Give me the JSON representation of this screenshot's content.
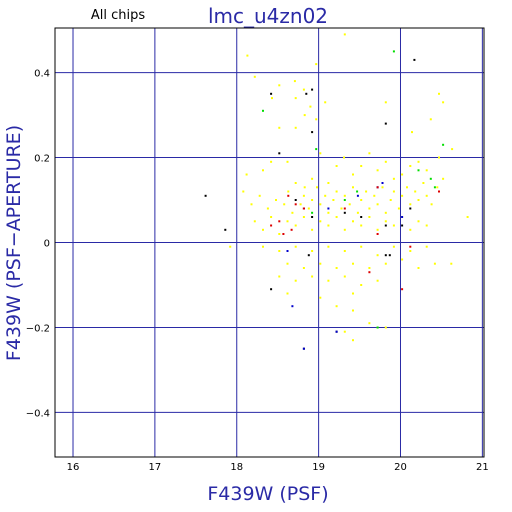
{
  "chart_data": {
    "type": "scatter",
    "title": "lmc_u4zn02",
    "subtitle": "All chips",
    "xlabel": "F439W (PSF)",
    "ylabel": "F439W (PSF−APERTURE)",
    "xlim": [
      15.78,
      21.02
    ],
    "ylim": [
      -0.505,
      0.505
    ],
    "xticks": [
      16,
      17,
      18,
      19,
      20,
      21
    ],
    "yticks": [
      -0.4,
      -0.2,
      0,
      0.2,
      0.4
    ],
    "xtick_labels": [
      "16",
      "17",
      "18",
      "19",
      "20",
      "21"
    ],
    "ytick_labels": [
      "−0.4",
      "−0.2",
      "0",
      "0.2",
      "0.4"
    ],
    "grid": true,
    "colors": {
      "frame": "#000000",
      "grid": "#2a2aa6",
      "title": "#2a2aa6",
      "axis_label": "#2a2aa6",
      "yellow": "#ffff00",
      "black": "#000000",
      "blue": "#0000cc",
      "red": "#dd0000",
      "green": "#00dd00"
    },
    "series": [
      {
        "color": "yellow",
        "points": [
          [
            18.13,
            0.44
          ],
          [
            18.22,
            0.39
          ],
          [
            18.43,
            0.34
          ],
          [
            18.52,
            0.37
          ],
          [
            18.71,
            0.38
          ],
          [
            18.72,
            0.34
          ],
          [
            18.82,
            0.36
          ],
          [
            18.9,
            0.32
          ],
          [
            18.97,
            0.42
          ],
          [
            19.32,
            0.49
          ],
          [
            18.52,
            0.27
          ],
          [
            18.72,
            0.27
          ],
          [
            18.83,
            0.3
          ],
          [
            18.97,
            0.29
          ],
          [
            19.08,
            0.33
          ],
          [
            19.82,
            0.33
          ],
          [
            20.14,
            0.26
          ],
          [
            20.37,
            0.29
          ],
          [
            20.47,
            0.35
          ],
          [
            20.52,
            0.33
          ],
          [
            20.63,
            0.22
          ],
          [
            18.12,
            0.16
          ],
          [
            18.32,
            0.17
          ],
          [
            18.42,
            0.19
          ],
          [
            18.62,
            0.19
          ],
          [
            18.72,
            0.14
          ],
          [
            18.83,
            0.13
          ],
          [
            18.92,
            0.15
          ],
          [
            19.02,
            0.21
          ],
          [
            19.12,
            0.14
          ],
          [
            19.22,
            0.18
          ],
          [
            19.31,
            0.2
          ],
          [
            19.42,
            0.16
          ],
          [
            19.52,
            0.18
          ],
          [
            19.62,
            0.21
          ],
          [
            19.72,
            0.17
          ],
          [
            19.82,
            0.19
          ],
          [
            19.92,
            0.15
          ],
          [
            20.02,
            0.16
          ],
          [
            20.12,
            0.18
          ],
          [
            20.22,
            0.19
          ],
          [
            20.32,
            0.17
          ],
          [
            20.47,
            0.2
          ],
          [
            20.52,
            0.15
          ],
          [
            18.08,
            0.12
          ],
          [
            18.18,
            0.09
          ],
          [
            18.28,
            0.11
          ],
          [
            18.38,
            0.08
          ],
          [
            18.48,
            0.1
          ],
          [
            18.58,
            0.09
          ],
          [
            18.63,
            0.12
          ],
          [
            18.68,
            0.07
          ],
          [
            18.78,
            0.09
          ],
          [
            18.82,
            0.11
          ],
          [
            18.88,
            0.08
          ],
          [
            18.92,
            0.1
          ],
          [
            18.98,
            0.13
          ],
          [
            19.02,
            0.09
          ],
          [
            19.08,
            0.11
          ],
          [
            19.12,
            0.07
          ],
          [
            19.18,
            0.1
          ],
          [
            19.22,
            0.12
          ],
          [
            19.28,
            0.08
          ],
          [
            19.32,
            0.11
          ],
          [
            19.38,
            0.09
          ],
          [
            19.42,
            0.13
          ],
          [
            19.48,
            0.07
          ],
          [
            19.52,
            0.1
          ],
          [
            19.58,
            0.12
          ],
          [
            19.62,
            0.08
          ],
          [
            19.68,
            0.11
          ],
          [
            19.72,
            0.09
          ],
          [
            19.78,
            0.13
          ],
          [
            19.82,
            0.07
          ],
          [
            19.88,
            0.1
          ],
          [
            19.92,
            0.12
          ],
          [
            19.98,
            0.08
          ],
          [
            20.02,
            0.11
          ],
          [
            20.08,
            0.13
          ],
          [
            20.12,
            0.09
          ],
          [
            20.18,
            0.12
          ],
          [
            20.22,
            0.1
          ],
          [
            20.28,
            0.14
          ],
          [
            20.32,
            0.11
          ],
          [
            20.38,
            0.09
          ],
          [
            20.45,
            0.13
          ],
          [
            18.22,
            0.05
          ],
          [
            18.32,
            0.03
          ],
          [
            18.42,
            0.06
          ],
          [
            18.52,
            0.02
          ],
          [
            18.62,
            0.05
          ],
          [
            18.72,
            0.04
          ],
          [
            18.82,
            0.06
          ],
          [
            18.92,
            0.03
          ],
          [
            19.02,
            0.05
          ],
          [
            19.12,
            0.04
          ],
          [
            19.22,
            0.06
          ],
          [
            19.32,
            0.03
          ],
          [
            19.42,
            0.05
          ],
          [
            19.52,
            0.04
          ],
          [
            19.62,
            0.06
          ],
          [
            19.72,
            0.03
          ],
          [
            19.82,
            0.05
          ],
          [
            19.92,
            0.04
          ],
          [
            20.02,
            0.06
          ],
          [
            20.12,
            0.03
          ],
          [
            20.22,
            0.05
          ],
          [
            20.32,
            0.04
          ],
          [
            20.82,
            0.06
          ],
          [
            18.32,
            -0.01
          ],
          [
            18.52,
            -0.02
          ],
          [
            18.72,
            -0.01
          ],
          [
            18.92,
            -0.02
          ],
          [
            19.12,
            -0.01
          ],
          [
            19.32,
            -0.02
          ],
          [
            19.52,
            -0.01
          ],
          [
            19.72,
            -0.03
          ],
          [
            19.92,
            -0.01
          ],
          [
            20.12,
            -0.02
          ],
          [
            20.32,
            -0.01
          ],
          [
            18.62,
            -0.05
          ],
          [
            18.82,
            -0.06
          ],
          [
            19.02,
            -0.05
          ],
          [
            19.22,
            -0.06
          ],
          [
            19.42,
            -0.05
          ],
          [
            19.62,
            -0.06
          ],
          [
            19.82,
            -0.05
          ],
          [
            20.02,
            -0.04
          ],
          [
            20.22,
            -0.06
          ],
          [
            20.42,
            -0.05
          ],
          [
            18.52,
            -0.08
          ],
          [
            18.72,
            -0.09
          ],
          [
            18.92,
            -0.08
          ],
          [
            19.12,
            -0.09
          ],
          [
            19.32,
            -0.08
          ],
          [
            19.52,
            -0.1
          ],
          [
            19.72,
            -0.09
          ],
          [
            18.62,
            -0.12
          ],
          [
            19.02,
            -0.13
          ],
          [
            19.42,
            -0.12
          ],
          [
            19.22,
            -0.15
          ],
          [
            19.42,
            -0.16
          ],
          [
            19.62,
            -0.19
          ],
          [
            19.72,
            -0.2
          ],
          [
            19.82,
            -0.2
          ],
          [
            19.32,
            -0.21
          ],
          [
            19.42,
            -0.23
          ],
          [
            17.92,
            -0.01
          ],
          [
            20.62,
            -0.05
          ]
        ]
      },
      {
        "color": "black",
        "points": [
          [
            20.17,
            0.43
          ],
          [
            18.42,
            0.35
          ],
          [
            18.85,
            0.35
          ],
          [
            18.92,
            0.36
          ],
          [
            19.82,
            0.28
          ],
          [
            18.92,
            0.26
          ],
          [
            18.52,
            0.21
          ],
          [
            17.62,
            0.11
          ],
          [
            18.72,
            0.1
          ],
          [
            18.82,
            0.08
          ],
          [
            19.32,
            0.07
          ],
          [
            19.52,
            0.06
          ],
          [
            18.92,
            0.06
          ],
          [
            17.86,
            0.03
          ],
          [
            19.82,
            0.04
          ],
          [
            20.02,
            0.04
          ],
          [
            20.12,
            0.08
          ],
          [
            19.82,
            -0.03
          ],
          [
            19.87,
            -0.03
          ],
          [
            18.88,
            -0.03
          ],
          [
            18.42,
            -0.11
          ],
          [
            19.22,
            -0.21
          ],
          [
            18.82,
            -0.25
          ]
        ]
      },
      {
        "color": "blue",
        "points": [
          [
            19.48,
            0.11
          ],
          [
            19.72,
            0.13
          ],
          [
            19.78,
            0.14
          ],
          [
            20.02,
            0.06
          ],
          [
            19.12,
            0.08
          ],
          [
            18.62,
            -0.02
          ],
          [
            18.68,
            -0.15
          ],
          [
            18.82,
            -0.25
          ],
          [
            19.22,
            -0.21
          ]
        ]
      },
      {
        "color": "red",
        "points": [
          [
            18.63,
            0.11
          ],
          [
            18.72,
            0.09
          ],
          [
            18.82,
            0.08
          ],
          [
            18.52,
            0.05
          ],
          [
            18.42,
            0.04
          ],
          [
            18.57,
            0.02
          ],
          [
            18.67,
            0.03
          ],
          [
            19.32,
            0.08
          ],
          [
            19.72,
            0.13
          ],
          [
            19.72,
            0.02
          ],
          [
            19.62,
            -0.07
          ],
          [
            20.47,
            0.12
          ],
          [
            20.02,
            -0.11
          ],
          [
            20.12,
            -0.01
          ]
        ]
      },
      {
        "color": "green",
        "points": [
          [
            18.32,
            0.31
          ],
          [
            19.92,
            0.45
          ],
          [
            20.52,
            0.23
          ],
          [
            18.97,
            0.22
          ],
          [
            20.22,
            0.17
          ],
          [
            20.37,
            0.15
          ],
          [
            19.47,
            0.12
          ],
          [
            19.32,
            0.1
          ],
          [
            18.92,
            0.07
          ],
          [
            19.72,
            -0.2
          ],
          [
            20.42,
            0.13
          ]
        ]
      }
    ]
  }
}
